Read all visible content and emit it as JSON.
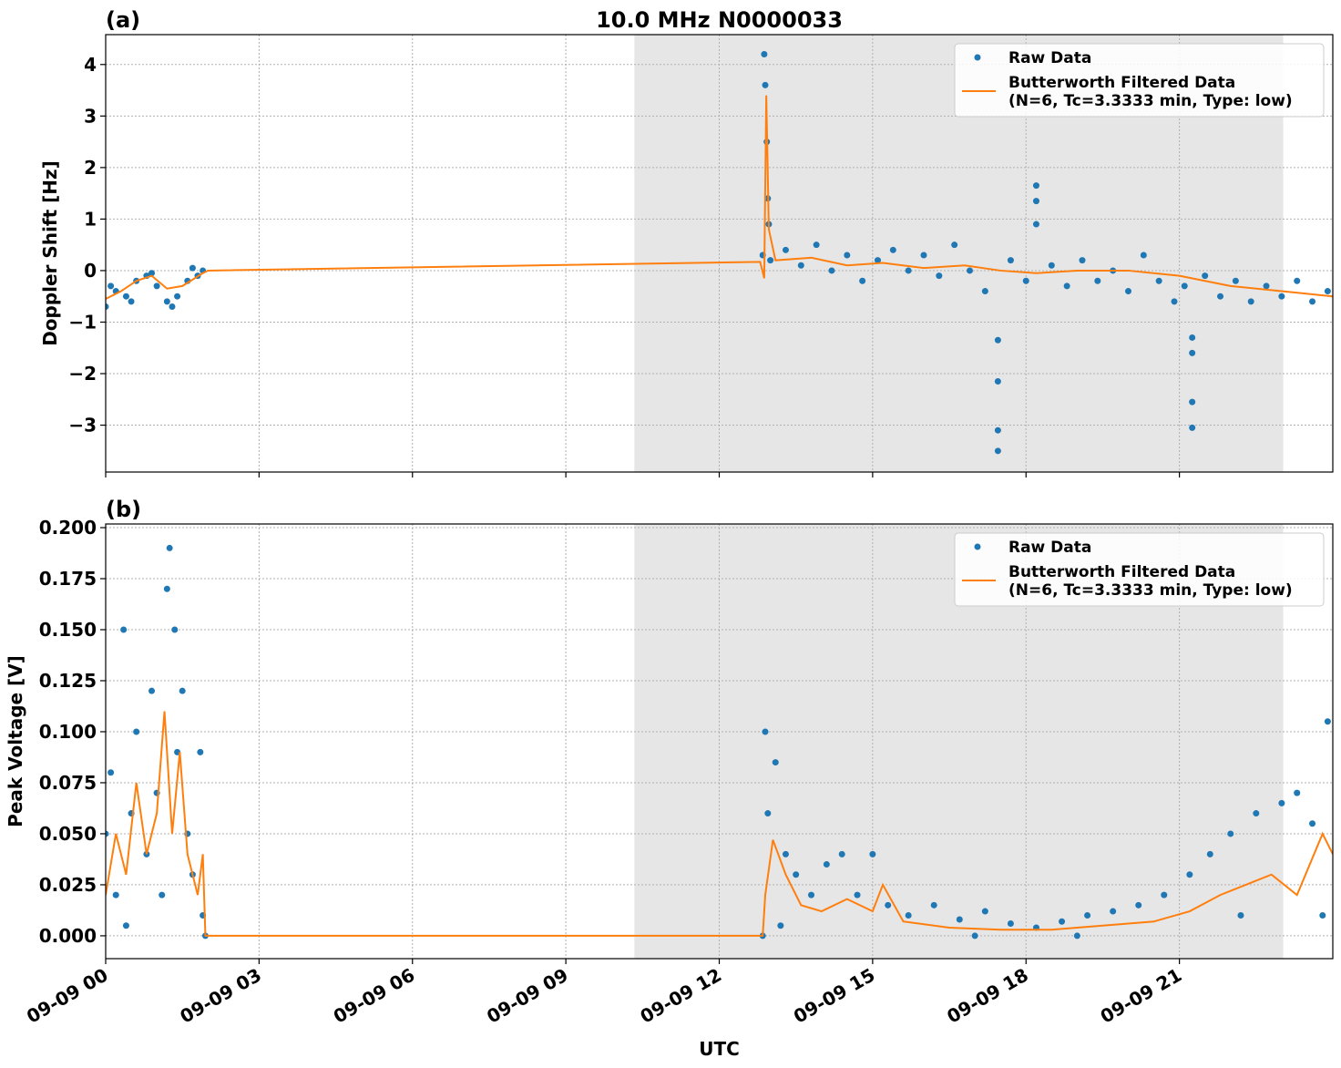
{
  "chart_data": [
    {
      "type": "scatter",
      "title": "10.0 MHz N0000033",
      "panel_label": "(a)",
      "y_label": "Doppler Shift [Hz]",
      "xlim": [
        0,
        24
      ],
      "ylim": [
        -3.91,
        4.58
      ],
      "yticks": [
        {
          "value": -3,
          "label": "−3"
        },
        {
          "value": -2,
          "label": "−2"
        },
        {
          "value": -1,
          "label": "−1"
        },
        0,
        1,
        2,
        3,
        4
      ],
      "grid": true,
      "legend": "upper right",
      "shade": [
        10.34,
        23.03
      ],
      "shade_color": "#e6e6e6",
      "series": [
        {
          "name": "Raw Data",
          "mode": "markers",
          "color": "#1f77b4",
          "x": [
            0.0,
            0.1,
            0.2,
            0.4,
            0.5,
            0.6,
            0.8,
            0.9,
            1.0,
            1.2,
            1.3,
            1.4,
            1.6,
            1.7,
            1.8,
            1.9,
            12.85,
            12.88,
            12.9,
            12.93,
            12.95,
            12.97,
            13.0,
            13.3,
            13.6,
            13.9,
            14.2,
            14.5,
            14.8,
            15.1,
            15.4,
            15.7,
            16.0,
            16.3,
            16.6,
            16.9,
            17.2,
            17.45,
            17.45,
            17.45,
            17.45,
            17.7,
            18.0,
            18.2,
            18.2,
            18.2,
            18.5,
            18.8,
            19.1,
            19.4,
            19.7,
            20.0,
            20.3,
            20.6,
            20.9,
            21.1,
            21.25,
            21.25,
            21.25,
            21.25,
            21.5,
            21.8,
            22.1,
            22.4,
            22.7,
            23.0,
            23.3,
            23.6,
            23.9
          ],
          "values": [
            -0.7,
            -0.3,
            -0.4,
            -0.5,
            -0.6,
            -0.2,
            -0.1,
            -0.05,
            -0.3,
            -0.6,
            -0.7,
            -0.5,
            -0.2,
            0.05,
            -0.1,
            0.0,
            0.3,
            4.2,
            3.6,
            2.5,
            1.4,
            0.9,
            0.2,
            0.4,
            0.1,
            0.5,
            0.0,
            0.3,
            -0.2,
            0.2,
            0.4,
            0.0,
            0.3,
            -0.1,
            0.5,
            0.0,
            -0.4,
            -1.35,
            -2.15,
            -3.1,
            -3.5,
            0.2,
            -0.2,
            1.65,
            1.35,
            0.9,
            0.1,
            -0.3,
            0.2,
            -0.2,
            0.0,
            -0.4,
            0.3,
            -0.2,
            -0.6,
            -0.3,
            -1.3,
            -1.6,
            -2.55,
            -3.05,
            -0.1,
            -0.5,
            -0.2,
            -0.6,
            -0.3,
            -0.5,
            -0.2,
            -0.6,
            -0.4
          ]
        },
        {
          "name": "Butterworth Filtered Data\n(N=6, Tc=3.3333 min, Type: low)",
          "mode": "line",
          "color": "#ff7f0e",
          "x": [
            0,
            0.3,
            0.6,
            0.9,
            1.2,
            1.5,
            1.9,
            2.0,
            12.8,
            12.88,
            12.92,
            12.97,
            13.1,
            13.8,
            14.5,
            15.2,
            16.0,
            16.8,
            17.5,
            18.2,
            19.0,
            20.0,
            21.0,
            22.0,
            23.0,
            24
          ],
          "values": [
            -0.55,
            -0.4,
            -0.2,
            -0.1,
            -0.35,
            -0.3,
            -0.05,
            0.0,
            0.17,
            -0.15,
            3.4,
            0.8,
            0.2,
            0.25,
            0.1,
            0.15,
            0.05,
            0.1,
            0.0,
            -0.05,
            0.0,
            0.0,
            -0.1,
            -0.3,
            -0.4,
            -0.5
          ]
        }
      ]
    },
    {
      "type": "scatter",
      "panel_label": "(b)",
      "y_label": "Peak Voltage [V]",
      "x_label": "UTC",
      "xlim": [
        0,
        24
      ],
      "ylim": [
        -0.0112,
        0.2018
      ],
      "xticks": [
        {
          "value": 0,
          "label": "09-09 00"
        },
        {
          "value": 3,
          "label": "09-09 03"
        },
        {
          "value": 6,
          "label": "09-09 06"
        },
        {
          "value": 9,
          "label": "09-09 09"
        },
        {
          "value": 12,
          "label": "09-09 12"
        },
        {
          "value": 15,
          "label": "09-09 15"
        },
        {
          "value": 18,
          "label": "09-09 18"
        },
        {
          "value": 21,
          "label": "09-09 21"
        }
      ],
      "yticks": [
        {
          "value": 0,
          "label": "0.000"
        },
        0.025,
        {
          "value": 0.05,
          "label": "0.050"
        },
        0.075,
        {
          "value": 0.1,
          "label": "0.100"
        },
        0.125,
        {
          "value": 0.15,
          "label": "0.150"
        },
        0.175,
        {
          "value": 0.2,
          "label": "0.200"
        }
      ],
      "grid": true,
      "legend": "upper right",
      "shade": [
        10.34,
        23.03
      ],
      "shade_color": "#e6e6e6",
      "series": [
        {
          "name": "Raw Data",
          "mode": "markers",
          "color": "#1f77b4",
          "x": [
            0,
            0.1,
            0.2,
            0.35,
            0.4,
            0.5,
            0.6,
            0.8,
            0.9,
            1.0,
            1.1,
            1.2,
            1.25,
            1.35,
            1.4,
            1.5,
            1.6,
            1.7,
            1.85,
            1.9,
            1.95,
            12.85,
            12.9,
            12.95,
            13.1,
            13.2,
            13.3,
            13.5,
            13.8,
            14.1,
            14.4,
            14.7,
            15.0,
            15.3,
            15.7,
            16.2,
            16.7,
            17.0,
            17.2,
            17.7,
            18.2,
            18.7,
            19.0,
            19.2,
            19.7,
            20.2,
            20.7,
            21.2,
            21.6,
            22.0,
            22.2,
            22.5,
            23.0,
            23.3,
            23.6,
            23.8,
            23.9
          ],
          "values": [
            0.05,
            0.08,
            0.02,
            0.15,
            0.005,
            0.06,
            0.1,
            0.04,
            0.12,
            0.07,
            0.02,
            0.17,
            0.19,
            0.15,
            0.09,
            0.12,
            0.05,
            0.03,
            0.09,
            0.01,
            0.0,
            0.0,
            0.1,
            0.06,
            0.085,
            0.005,
            0.04,
            0.03,
            0.02,
            0.035,
            0.04,
            0.02,
            0.04,
            0.015,
            0.01,
            0.015,
            0.008,
            0.0,
            0.012,
            0.006,
            0.004,
            0.007,
            0.0,
            0.01,
            0.012,
            0.015,
            0.02,
            0.03,
            0.04,
            0.05,
            0.01,
            0.06,
            0.065,
            0.07,
            0.055,
            0.01,
            0.105
          ]
        },
        {
          "name": "Butterworth Filtered Data\n(N=6, Tc=3.3333 min, Type: low)",
          "mode": "line",
          "color": "#ff7f0e",
          "x": [
            0,
            0.2,
            0.4,
            0.6,
            0.8,
            1.0,
            1.15,
            1.3,
            1.45,
            1.6,
            1.8,
            1.9,
            1.95,
            12.85,
            12.9,
            13.05,
            13.3,
            13.6,
            14.0,
            14.5,
            15.0,
            15.2,
            15.6,
            16.5,
            17.5,
            18.5,
            19.5,
            20.5,
            21.2,
            21.8,
            22.3,
            22.8,
            23.3,
            23.8,
            24
          ],
          "values": [
            0.02,
            0.05,
            0.03,
            0.075,
            0.04,
            0.06,
            0.11,
            0.05,
            0.09,
            0.04,
            0.02,
            0.04,
            0.0,
            0.0,
            0.02,
            0.047,
            0.03,
            0.015,
            0.012,
            0.018,
            0.012,
            0.025,
            0.007,
            0.004,
            0.003,
            0.003,
            0.005,
            0.007,
            0.012,
            0.02,
            0.025,
            0.03,
            0.02,
            0.05,
            0.04
          ]
        }
      ]
    }
  ]
}
